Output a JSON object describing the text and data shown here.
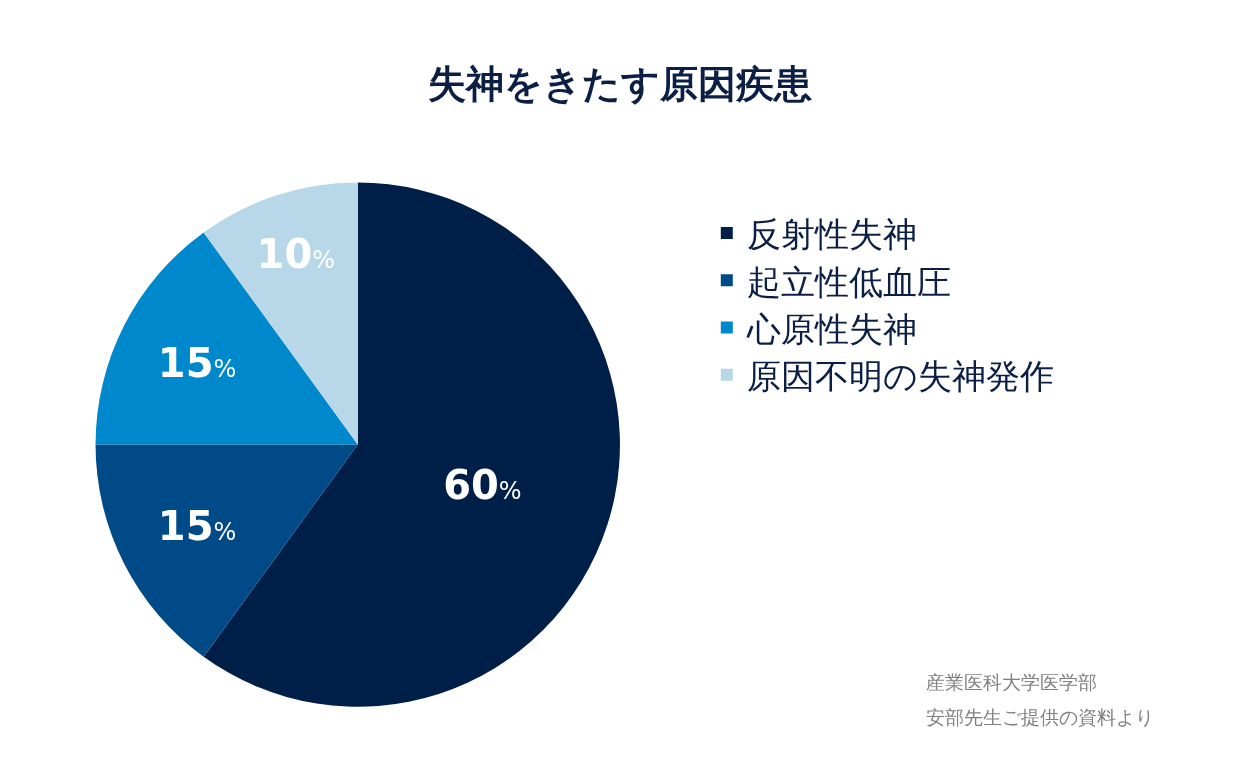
{
  "chart_data": {
    "type": "pie",
    "title": "失神をきたす原因疾患",
    "categories": [
      "反射性失神",
      "起立性低血圧",
      "心原性失神",
      "原因不明の失神発作"
    ],
    "values": [
      60,
      15,
      15,
      10
    ],
    "colors": [
      "#001f48",
      "#004a87",
      "#0088cc",
      "#b8d8ea"
    ],
    "value_labels": [
      "60%",
      "15%",
      "15%",
      "10%"
    ],
    "legend": "right",
    "annotations": [
      "産業医科大学医学部",
      "安部先生ご提供の資料より"
    ]
  }
}
